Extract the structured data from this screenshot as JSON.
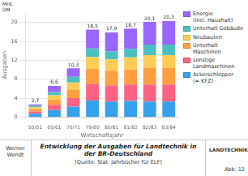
{
  "chart_data": {
    "type": "bar",
    "stacked": true,
    "grid": true,
    "legend": "right",
    "title": "Entwicklung der Ausgaben für Landtechnik in der BR-Deutschland",
    "subtitle": "[Quelle: Stat. Jahrbücher für ELF]",
    "xlabel": "Wirtschaftsjahr",
    "ylabel": "Ausgaben",
    "annotations": [
      "Mrd.\nDM",
      "Werner\nWendt",
      "LANDTECHNIK",
      "Abb. 12"
    ],
    "categories": [
      "50/51",
      "60/61",
      "70/71",
      "79/80",
      "80/81",
      "81/82",
      "82/83",
      "83/84"
    ],
    "series": [
      {
        "name": "Ackerschlepper\n(= KFZ)",
        "color": "#36a2eb",
        "values": [
          0.7,
          1.5,
          2.2,
          3.5,
          3.3,
          3.4,
          3.3,
          3.3
        ]
      },
      {
        "name": "sonstige\nLandmaschinen",
        "color": "#ff6384",
        "values": [
          0.5,
          1.1,
          1.8,
          3.5,
          3.4,
          3.5,
          3.6,
          3.6
        ]
      },
      {
        "name": "Unterhalt\nMaschinen",
        "color": "#ff9f40",
        "values": [
          0.5,
          1.1,
          1.8,
          3.2,
          3.1,
          3.2,
          3.5,
          3.5
        ]
      },
      {
        "name": "Neubauten",
        "color": "#ffcd56",
        "values": [
          0.4,
          0.9,
          1.5,
          2.5,
          2.4,
          2.5,
          2.7,
          2.7
        ]
      },
      {
        "name": "Unterhalt Gebäude",
        "color": "#4bc0c0",
        "values": [
          0.3,
          0.7,
          1.2,
          1.8,
          1.7,
          1.8,
          2.2,
          2.2
        ]
      },
      {
        "name": "Energie\n(incl. Haushalt)",
        "color": "#9966ff",
        "values": [
          0.3,
          1.3,
          1.8,
          4.0,
          4.0,
          4.3,
          4.8,
          5.0
        ]
      }
    ],
    "totals": [
      2.7,
      6.6,
      10.3,
      18.5,
      17.9,
      18.7,
      20.1,
      20.3
    ],
    "total_labels": [
      "2,7",
      "6,6",
      "10,3",
      "18,5",
      "17,9",
      "18,7",
      "20,1",
      "20,3"
    ],
    "ylim": [
      0,
      22
    ],
    "yticks": [
      0,
      4,
      8,
      12,
      16,
      20
    ]
  }
}
